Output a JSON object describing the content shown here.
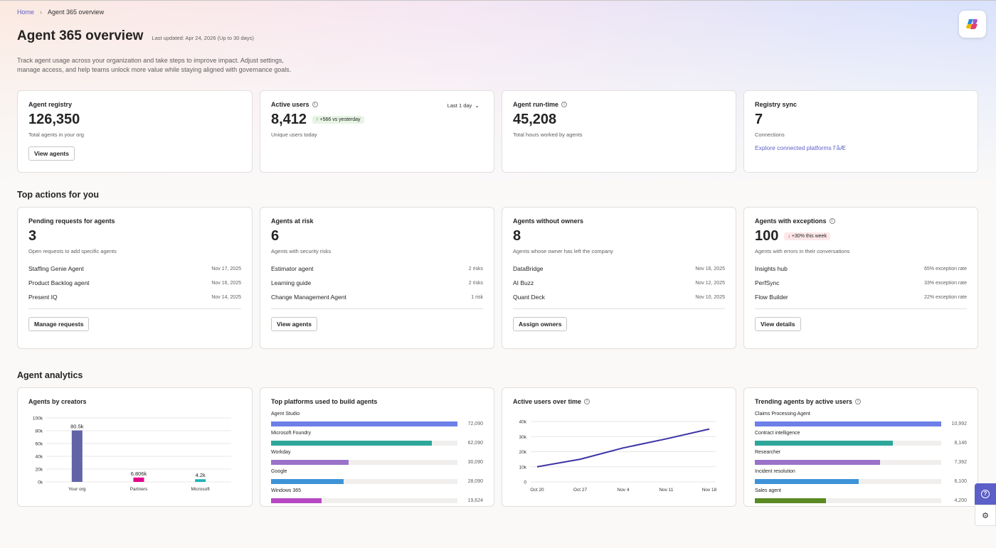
{
  "breadcrumb": {
    "home": "Home",
    "current": "Agent 365 overview"
  },
  "header": {
    "title": "Agent 365 overview",
    "updated": "Last updated: Apr 24, 2026 (Up to 30 days)",
    "description": "Track agent usage across your organization and take steps to improve impact. Adjust settings, manage access, and help teams unlock more value while staying aligned with governance goals."
  },
  "kpis": {
    "registry": {
      "title": "Agent registry",
      "value": "126,350",
      "sub": "Total agents in your org",
      "button": "View agents"
    },
    "active_users": {
      "title": "Active users",
      "value": "8,412",
      "badge": "+566 vs yesterday",
      "sub": "Unique users today",
      "range": "Last 1 day"
    },
    "runtime": {
      "title": "Agent run-time",
      "value": "45,208",
      "sub": "Total hours worked by agents"
    },
    "sync": {
      "title": "Registry sync",
      "value": "7",
      "sub": "Connections",
      "link": "Explore connected platforms ΓåÆ"
    }
  },
  "top_actions": {
    "title": "Top actions for you",
    "pending": {
      "title": "Pending requests for agents",
      "value": "3",
      "sub": "Open requests to add specific agents",
      "rows": [
        {
          "name": "Staffing Genie Agent",
          "meta": "Nov 17, 2025"
        },
        {
          "name": "Product Backlog agent",
          "meta": "Nov 16, 2025"
        },
        {
          "name": "Present IQ",
          "meta": "Nov 14, 2025"
        }
      ],
      "button": "Manage requests"
    },
    "risk": {
      "title": "Agents at risk",
      "value": "6",
      "sub": "Agents with security risks",
      "rows": [
        {
          "name": "Estimator agent",
          "meta": "2 risks"
        },
        {
          "name": "Learning guide",
          "meta": "2 risks"
        },
        {
          "name": "Change Management Agent",
          "meta": "1 risk"
        }
      ],
      "button": "View agents"
    },
    "owners": {
      "title": "Agents without owners",
      "value": "8",
      "sub": "Agents whose owner has left the company",
      "rows": [
        {
          "name": "DataBridge",
          "meta": "Nov 16, 2025"
        },
        {
          "name": "AI Buzz",
          "meta": "Nov 12, 2025"
        },
        {
          "name": "Quant Deck",
          "meta": "Nov 10, 2025"
        }
      ],
      "button": "Assign owners"
    },
    "exceptions": {
      "title": "Agents with exceptions",
      "value": "100",
      "badge": "+30% this week",
      "sub": "Agents with errors in their conversations",
      "rows": [
        {
          "name": "Insights hub",
          "meta": "65% exception rate"
        },
        {
          "name": "PerfSync",
          "meta": "33% exception rate"
        },
        {
          "name": "Flow Builder",
          "meta": "22% exception rate"
        }
      ],
      "button": "View details"
    }
  },
  "analytics": {
    "title": "Agent analytics",
    "creators_title": "Agents by creators",
    "platforms_title": "Top platforms used to build agents",
    "active_title": "Active users over time",
    "trending_title": "Trending agents by active users"
  },
  "colors": {
    "accent": "#5b5fc7",
    "bar_blue": "#6e7fe8",
    "bar_teal": "#2ea79b",
    "bar_purple": "#9a72c9",
    "bar_sky": "#3e93d8",
    "bar_magenta": "#b748c4",
    "bar_green": "#5a8a23",
    "line": "#3c33a6",
    "creators_yourorg": "#6264a7",
    "creators_partners": "#e3008c",
    "creators_microsoft": "#1fb2b9"
  },
  "chart_data": [
    {
      "type": "bar",
      "title": "Agents by creators",
      "categories": [
        "Your org",
        "Partners",
        "Microsoft"
      ],
      "values": [
        80500,
        6806,
        4200
      ],
      "data_labels": [
        "80.5k",
        "6.806k",
        "4.2k"
      ],
      "yticks": [
        "0k",
        "20k",
        "40k",
        "60k",
        "80k",
        "100k"
      ],
      "ylim": [
        0,
        100000
      ],
      "grid": true
    },
    {
      "type": "bar",
      "orientation": "horizontal",
      "title": "Top platforms used to build agents",
      "categories": [
        "Agent Studio",
        "Microsoft Foundry",
        "Workday",
        "Google",
        "Windows 365"
      ],
      "values": [
        72090,
        62090,
        30090,
        28090,
        19624
      ],
      "data_labels": [
        "72,090",
        "62,090",
        "30,090",
        "28,090",
        "19,624"
      ],
      "xlim": [
        0,
        72090
      ]
    },
    {
      "type": "line",
      "title": "Active users over time",
      "x": [
        "Oct 20",
        "Oct 27",
        "Nov 4",
        "Nov 11",
        "Nov 18"
      ],
      "y": [
        10000,
        15000,
        22500,
        28500,
        35000
      ],
      "yticks": [
        "0",
        "10k",
        "20k",
        "30k",
        "40k"
      ],
      "ylim": [
        0,
        40000
      ],
      "grid": true
    },
    {
      "type": "bar",
      "orientation": "horizontal",
      "title": "Trending agents by active users",
      "categories": [
        "Claims Processing Agent",
        "Contract intelligence",
        "Researcher",
        "Incident resolution",
        "Sales agent"
      ],
      "values": [
        10992,
        8146,
        7392,
        6100,
        4200
      ],
      "data_labels": [
        "10,992",
        "8,146",
        "7,392",
        "6,100",
        "4,200"
      ],
      "xlim": [
        0,
        10992
      ]
    }
  ]
}
